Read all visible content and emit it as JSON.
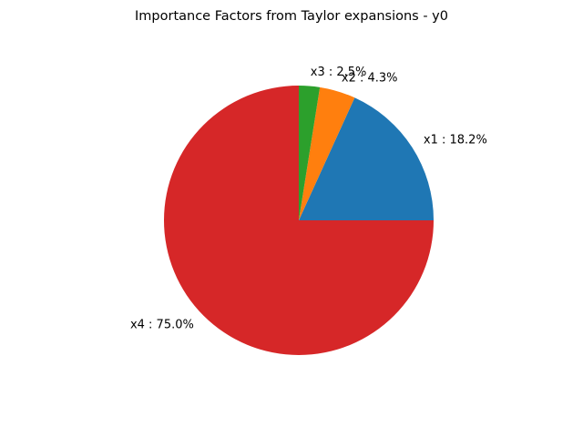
{
  "chart_data": {
    "type": "pie",
    "title": "Importance Factors from Taylor expansions - y0",
    "slices": [
      {
        "name": "x1",
        "value": 18.2,
        "label": "x1 : 18.2%",
        "color": "#1f77b4"
      },
      {
        "name": "x2",
        "value": 4.3,
        "label": "x2 : 4.3%",
        "color": "#ff7f0e"
      },
      {
        "name": "x3",
        "value": 2.5,
        "label": "x3 : 2.5%",
        "color": "#2ca02c"
      },
      {
        "name": "x4",
        "value": 75.0,
        "label": "x4 : 75.0%",
        "color": "#d62728"
      }
    ],
    "start_angle_deg": 0,
    "direction": "counterclockwise",
    "legend": false
  }
}
